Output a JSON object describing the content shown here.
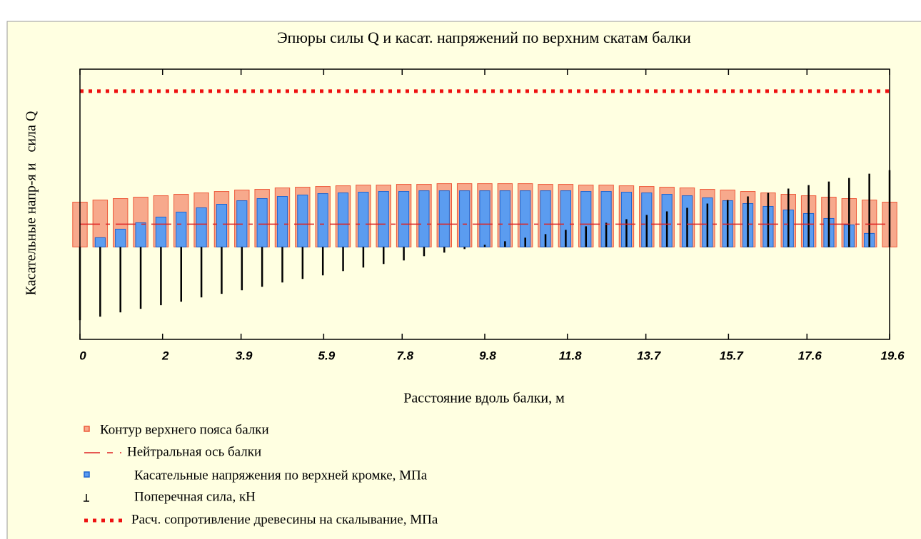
{
  "chart_data": {
    "type": "bar",
    "title": "Эпюры силы Q и касат. напряжений по верхним скатам балки",
    "x_label": "Расстояние вдоль балки, м",
    "y_label": "Касательные напр-я и   сила Q",
    "x": [
      0,
      0.49,
      0.98,
      1.47,
      1.96,
      2.45,
      2.94,
      3.43,
      3.92,
      4.41,
      4.9,
      5.39,
      5.88,
      6.37,
      6.86,
      7.35,
      7.84,
      8.33,
      8.82,
      9.31,
      9.8,
      10.29,
      10.78,
      11.27,
      11.76,
      12.25,
      12.74,
      13.23,
      13.72,
      14.21,
      14.7,
      15.19,
      15.68,
      16.17,
      16.66,
      17.15,
      17.64,
      18.13,
      18.62,
      19.11,
      19.6
    ],
    "xlim": [
      0,
      19.6
    ],
    "xticks": [
      0,
      2,
      3.9,
      5.9,
      7.8,
      9.8,
      11.8,
      13.7,
      15.7,
      17.6,
      19.6
    ],
    "ylim": [
      -1.3,
      2.5
    ],
    "series": [
      {
        "name": "Контур верхнего пояса балки",
        "style": "bar",
        "color": "#ee5a3a",
        "values": [
          0.63,
          0.66,
          0.68,
          0.7,
          0.72,
          0.74,
          0.76,
          0.78,
          0.8,
          0.81,
          0.83,
          0.84,
          0.85,
          0.86,
          0.87,
          0.87,
          0.88,
          0.88,
          0.89,
          0.89,
          0.89,
          0.89,
          0.89,
          0.88,
          0.88,
          0.87,
          0.87,
          0.86,
          0.85,
          0.84,
          0.83,
          0.81,
          0.8,
          0.78,
          0.76,
          0.74,
          0.72,
          0.7,
          0.68,
          0.66,
          0.63
        ]
      },
      {
        "name": "Нейтральная ось балки",
        "style": "dash",
        "color": "#dd2222",
        "x": [
          0,
          19.6
        ],
        "values": [
          0.32,
          0.32
        ]
      },
      {
        "name": "Касательные напряжения по верхней кромке, МПа",
        "style": "bar",
        "color": "#1e64d0",
        "values": [
          0,
          0.13,
          0.25,
          0.34,
          0.42,
          0.49,
          0.55,
          0.6,
          0.65,
          0.68,
          0.71,
          0.73,
          0.75,
          0.76,
          0.77,
          0.78,
          0.78,
          0.79,
          0.79,
          0.79,
          0.79,
          0.79,
          0.79,
          0.79,
          0.79,
          0.78,
          0.78,
          0.77,
          0.76,
          0.74,
          0.72,
          0.69,
          0.65,
          0.61,
          0.57,
          0.52,
          0.47,
          0.4,
          0.31,
          0.19,
          0
        ]
      },
      {
        "name": "Поперечная сила, кН",
        "style": "stem",
        "color": "#000000",
        "values": [
          -1.03,
          -0.98,
          -0.92,
          -0.87,
          -0.82,
          -0.77,
          -0.71,
          -0.66,
          -0.61,
          -0.56,
          -0.5,
          -0.45,
          -0.4,
          -0.34,
          -0.29,
          -0.24,
          -0.19,
          -0.13,
          -0.08,
          -0.03,
          0.03,
          0.08,
          0.13,
          0.18,
          0.24,
          0.29,
          0.34,
          0.39,
          0.45,
          0.5,
          0.55,
          0.61,
          0.66,
          0.71,
          0.76,
          0.82,
          0.87,
          0.92,
          0.97,
          1.03,
          1.08
        ]
      },
      {
        "name": "Расч. сопротивление древесины на скалывание, МПа",
        "style": "dot",
        "color": "#ee1111",
        "x": [
          0,
          19.6
        ],
        "values": [
          2.19,
          2.19
        ]
      }
    ]
  }
}
